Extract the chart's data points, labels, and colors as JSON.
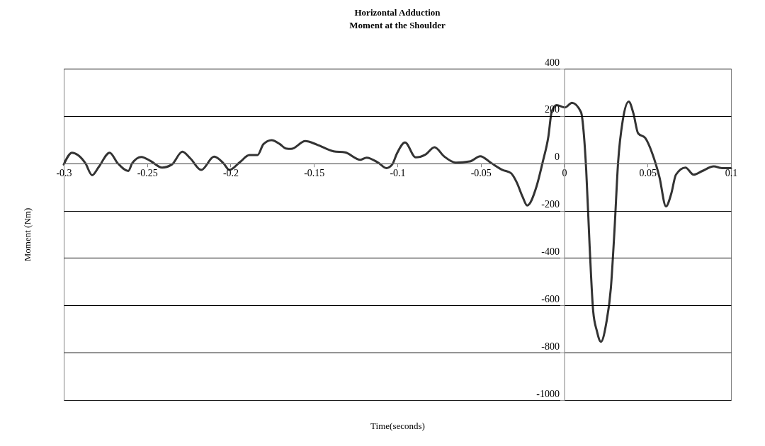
{
  "chart_data": {
    "type": "line",
    "title": [
      "Horizontal Adduction",
      "Moment at the Shoulder"
    ],
    "xlabel": "Time(seconds)",
    "ylabel": "Moment (Nm)",
    "xlim": [
      -0.3,
      0.1
    ],
    "xticks": [
      -0.3,
      -0.25,
      -0.2,
      -0.15,
      -0.1,
      -0.05,
      0,
      0.05,
      0.1
    ],
    "ylim": [
      -1000,
      400
    ],
    "yticks": [
      -1000,
      -800,
      -600,
      -400,
      -200,
      0,
      200,
      400
    ],
    "grid": "y",
    "marker": "none",
    "line_style": "solid",
    "series": [
      {
        "color": "#333333",
        "x": [
          -0.3,
          -0.295,
          -0.2915,
          -0.287,
          -0.283,
          -0.279,
          -0.2725,
          -0.2676,
          -0.2613,
          -0.259,
          -0.2535,
          -0.248,
          -0.241,
          -0.2352,
          -0.2289,
          -0.224,
          -0.2176,
          -0.2099,
          -0.2042,
          -0.2007,
          -0.1944,
          -0.1887,
          -0.1838,
          -0.1803,
          -0.1754,
          -0.1704,
          -0.1669,
          -0.1637,
          -0.1552,
          -0.1482,
          -0.1383,
          -0.1313,
          -0.1221,
          -0.1185,
          -0.1115,
          -0.1066,
          -0.1031,
          -0.1003,
          -0.0954,
          -0.089,
          -0.0834,
          -0.0777,
          -0.0721,
          -0.065,
          -0.0566,
          -0.0503,
          -0.0439,
          -0.0369,
          -0.032,
          -0.0284,
          -0.0249,
          -0.0222,
          -0.0166,
          -0.013,
          -0.0095,
          -0.0074,
          -0.0045,
          0.0004,
          0.0047,
          0.0101,
          0.0118,
          0.0132,
          0.0153,
          0.0174,
          0.0195,
          0.022,
          0.0252,
          0.028,
          0.0302,
          0.0323,
          0.0351,
          0.0387,
          0.0415,
          0.0443,
          0.0486,
          0.0528,
          0.0571,
          0.061,
          0.0642,
          0.067,
          0.0727,
          0.0776,
          0.0826,
          0.0897,
          0.0946,
          0.1
        ],
        "values": [
          -5,
          45,
          35,
          0,
          -50,
          -15,
          45,
          0,
          -32,
          0,
          27,
          10,
          -18,
          -5,
          49,
          20,
          -28,
          28,
          0,
          -28,
          5,
          35,
          35,
          81,
          98,
          81,
          63,
          61,
          94,
          79,
          51,
          46,
          15,
          24,
          3,
          -20,
          -5,
          41,
          88,
          25,
          36,
          68,
          30,
          3,
          8,
          30,
          2,
          -28,
          -41,
          -81,
          -142,
          -178,
          -98,
          2,
          112,
          221,
          246,
          236,
          256,
          216,
          122,
          -28,
          -357,
          -626,
          -706,
          -754,
          -676,
          -526,
          -277,
          2,
          181,
          261,
          211,
          127,
          107,
          42,
          -58,
          -182,
          -128,
          -48,
          -18,
          -48,
          -33,
          -13,
          -20,
          -20
        ]
      }
    ]
  }
}
